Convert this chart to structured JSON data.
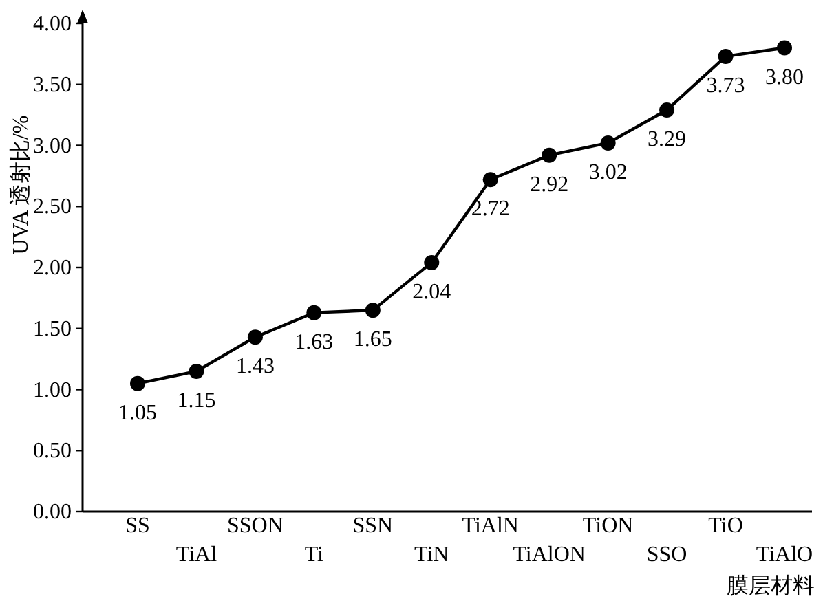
{
  "chart_data": {
    "type": "line",
    "ylabel": "UVA 透射比/%",
    "xlabel": "膜层材料",
    "categories": [
      "SS",
      "TiAl",
      "SSON",
      "Ti",
      "SSN",
      "TiN",
      "TiAlN",
      "TiAlON",
      "TiON",
      "SSO",
      "TiO",
      "TiAlO"
    ],
    "series": [
      {
        "color": "#000000",
        "values": [
          1.05,
          1.15,
          1.43,
          1.63,
          1.65,
          2.04,
          2.72,
          2.92,
          3.02,
          3.29,
          3.73,
          3.8
        ],
        "value_labels": [
          "1.05",
          "1.15",
          "1.43",
          "1.63",
          "1.65",
          "2.04",
          "2.72",
          "2.92",
          "3.02",
          "3.29",
          "3.73",
          "3.80"
        ]
      }
    ],
    "ylim": [
      0,
      4
    ],
    "yticks": [
      {
        "value": 0,
        "label": "0.00"
      },
      {
        "value": 0.5,
        "label": "0.50"
      },
      {
        "value": 1,
        "label": "1.00"
      },
      {
        "value": 1.5,
        "label": "1.50"
      },
      {
        "value": 2,
        "label": "2.00"
      },
      {
        "value": 2.5,
        "label": "2.50"
      },
      {
        "value": 3,
        "label": "3.00"
      },
      {
        "value": 3.5,
        "label": "3.50"
      },
      {
        "value": 4,
        "label": "4.00"
      }
    ],
    "marker": "circle",
    "line_style": "solid"
  }
}
